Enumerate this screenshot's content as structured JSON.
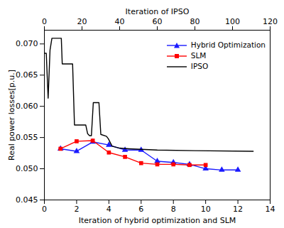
{
  "chart_data": {
    "type": "line",
    "x_label": "Iteration of hybrid optimization and SLM",
    "x2_label": "Iteration of IPSO",
    "y_label": "Real power losses[p.u.]",
    "xlim": [
      0,
      14
    ],
    "xticks": [
      0,
      2,
      4,
      6,
      8,
      10,
      12,
      14
    ],
    "x2lim": [
      0,
      120
    ],
    "x2ticks": [
      0,
      20,
      40,
      60,
      80,
      100,
      120
    ],
    "ylim": [
      0.045,
      0.0722
    ],
    "yticks": [
      {
        "value": 0.045,
        "label": "0.045"
      },
      {
        "value": 0.05,
        "label": "0.050"
      },
      {
        "value": 0.055,
        "label": "0.055"
      },
      {
        "value": 0.06,
        "label": "0.060"
      },
      {
        "value": 0.065,
        "label": "0.065"
      },
      {
        "value": 0.07,
        "label": "0.070"
      }
    ],
    "legend": "upper right",
    "series": [
      {
        "name": "Hybrid Optimization",
        "color": "#1a1aff",
        "marker": "triangle",
        "x": [
          1,
          2,
          3,
          4,
          5,
          6,
          7,
          8,
          9,
          10,
          11,
          12
        ],
        "values": [
          0.0532,
          0.0528,
          0.0543,
          0.0538,
          0.053,
          0.053,
          0.0512,
          0.051,
          0.0507,
          0.05,
          0.0498,
          0.0498
        ]
      },
      {
        "name": "SLM",
        "color": "#ff0000",
        "marker": "square",
        "x": [
          1,
          2,
          3,
          4,
          5,
          6,
          7,
          8,
          9,
          10
        ],
        "values": [
          0.0532,
          0.0544,
          0.0545,
          0.0526,
          0.0519,
          0.0509,
          0.0507,
          0.0507,
          0.0506,
          0.0506
        ]
      },
      {
        "name": "IPSO",
        "color": "#000000",
        "marker": "none",
        "axis": "x2",
        "x": [
          0,
          1,
          2,
          3,
          4,
          9,
          9.5,
          15,
          16,
          22,
          23,
          24,
          25,
          26,
          29,
          30,
          33,
          34,
          36,
          40,
          45,
          60,
          80,
          111
        ],
        "values": [
          0.0685,
          0.0685,
          0.0613,
          0.069,
          0.0709,
          0.0709,
          0.0668,
          0.0668,
          0.057,
          0.057,
          0.0556,
          0.0553,
          0.0553,
          0.0606,
          0.0606,
          0.0555,
          0.0552,
          0.0548,
          0.0536,
          0.0533,
          0.0532,
          0.053,
          0.0529,
          0.0528
        ]
      }
    ]
  }
}
